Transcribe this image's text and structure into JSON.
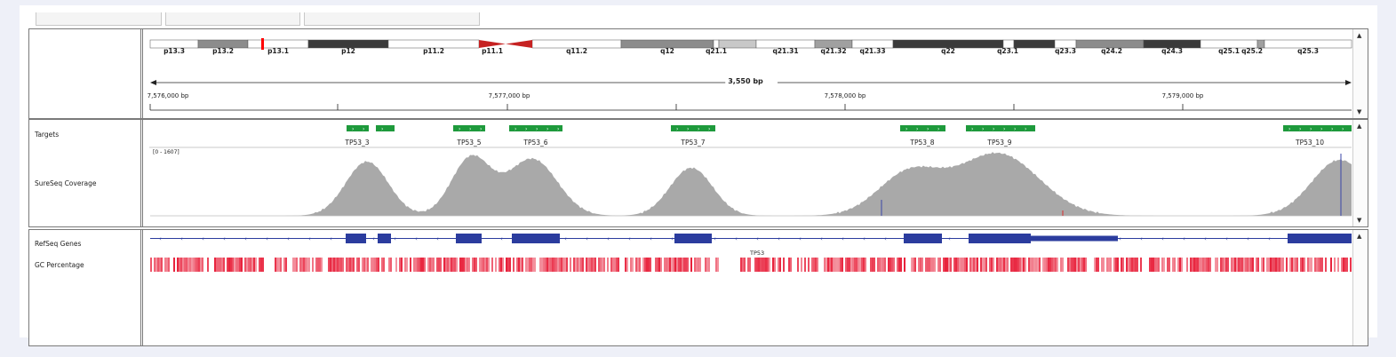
{
  "colors": {
    "coverage": "#a9a9a9",
    "target": "#1e9a3c",
    "gene": "#2b3c9e",
    "gc": "#e8203a",
    "centromere": "#c62222"
  },
  "cytobands": [
    "p13.3",
    "p13.2",
    "p13.1",
    "p12",
    "p11.2",
    "p11.1",
    "q11.2",
    "q12",
    "q21.1",
    "q21.31",
    "q21.32",
    "q21.33",
    "q22",
    "q23.1",
    "q23.3",
    "q24.2",
    "q24.3",
    "q25.1",
    "q25.2",
    "q25.3"
  ],
  "ruler": {
    "span": "3,550 bp",
    "ticks": [
      "7,576,000 bp",
      "7,577,000 bp",
      "7,578,000 bp",
      "7,579,000 bp"
    ]
  },
  "tracks": {
    "targets": "Targets",
    "coverage": "SureSeq Coverage",
    "coverage_scale": "[0 - 1607]",
    "refseq": "RefSeq Genes",
    "gc": "GC Percentage",
    "gene_name": "TP53"
  },
  "targets": [
    "TP53_3",
    "TP53_5",
    "TP53_6",
    "TP53_7",
    "TP53_8",
    "TP53_9",
    "TP53_10"
  ],
  "icons": {
    "scroll_up": "triangle-up-icon",
    "scroll_down": "triangle-down-icon"
  }
}
